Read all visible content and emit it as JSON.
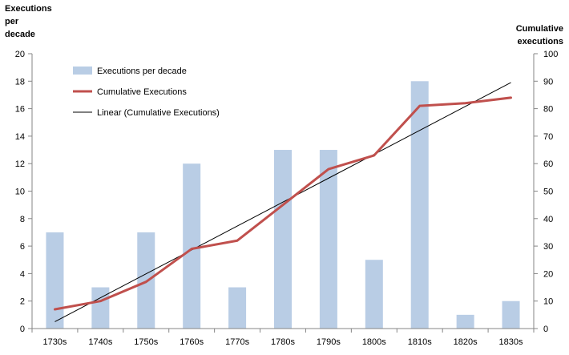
{
  "chart_data": {
    "type": "bar",
    "categories": [
      "1730s",
      "1740s",
      "1750s",
      "1760s",
      "1770s",
      "1780s",
      "1790s",
      "1800s",
      "1810s",
      "1820s",
      "1830s"
    ],
    "series": [
      {
        "name": "Executions per decade",
        "type": "bar",
        "axis": "left",
        "color": "#b9cde5",
        "values": [
          7,
          3,
          7,
          12,
          3,
          13,
          13,
          5,
          18,
          1,
          2
        ]
      },
      {
        "name": "Cumulative Executions",
        "type": "line",
        "axis": "right",
        "color": "#c0504d",
        "values": [
          7,
          10,
          17,
          29,
          32,
          45,
          58,
          63,
          81,
          82,
          84
        ]
      },
      {
        "name": "Linear (Cumulative Executions)",
        "type": "trendline",
        "axis": "right",
        "color": "#000000",
        "values": [
          2.5,
          11.2,
          19.9,
          28.6,
          37.3,
          46.0,
          54.7,
          63.4,
          72.1,
          80.8,
          89.5
        ]
      }
    ],
    "ylabel_left_lines": [
      "Executions",
      "per",
      "decade"
    ],
    "ylabel_right_lines": [
      "Cumulative",
      "executions"
    ],
    "ylim_left": [
      0,
      20
    ],
    "ylim_right": [
      0,
      100
    ],
    "yticks_left": [
      "0",
      "2",
      "4",
      "6",
      "8",
      "10",
      "12",
      "14",
      "16",
      "18",
      "20"
    ],
    "yticks_right": [
      "0",
      "10",
      "20",
      "30",
      "40",
      "50",
      "60",
      "70",
      "80",
      "90",
      "100"
    ],
    "grid": false,
    "legend_position": "top-left inside plot"
  }
}
